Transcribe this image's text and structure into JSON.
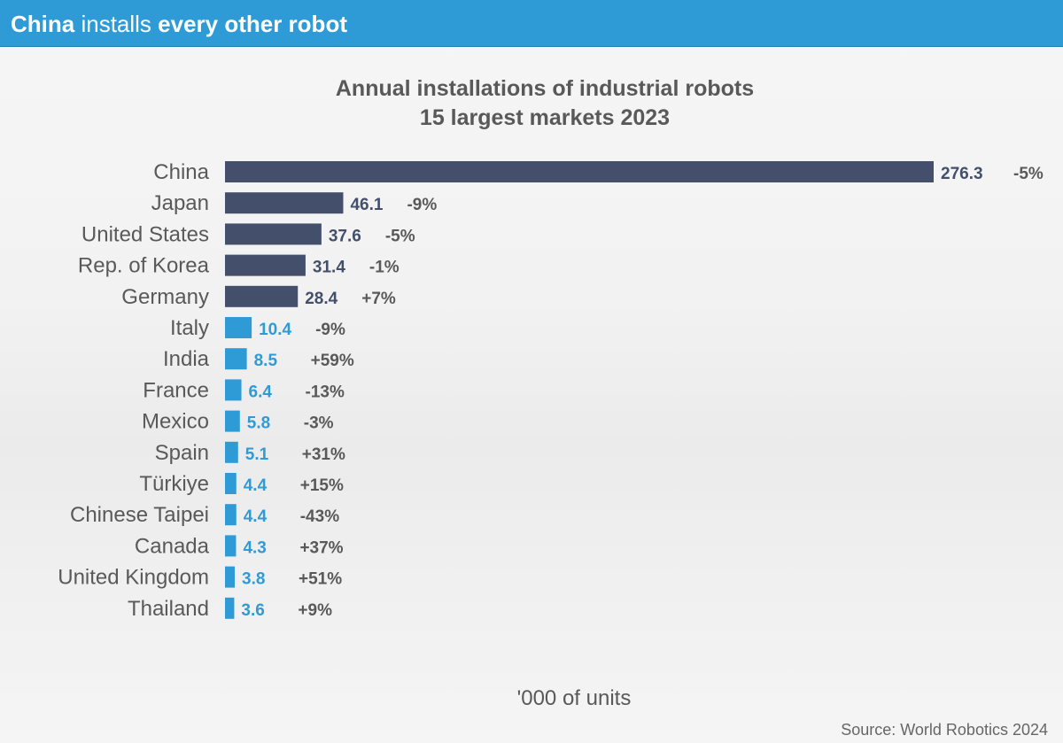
{
  "header": {
    "title_part1": "China",
    "title_part2": " installs ",
    "title_part3": "every other robot"
  },
  "chart_data": {
    "type": "bar",
    "orientation": "horizontal",
    "title": "Annual installations of industrial robots",
    "subtitle": "15 largest markets 2023",
    "xlabel": "'000 of units",
    "ylabel": "",
    "categories": [
      "China",
      "Japan",
      "United States",
      "Rep. of Korea",
      "Germany",
      "Italy",
      "India",
      "France",
      "Mexico",
      "Spain",
      "Türkiye",
      "Chinese Taipei",
      "Canada",
      "United Kingdom",
      "Thailand"
    ],
    "values": [
      276.3,
      46.1,
      37.6,
      31.4,
      28.4,
      10.4,
      8.5,
      6.4,
      5.8,
      5.1,
      4.4,
      4.4,
      4.3,
      3.8,
      3.6
    ],
    "value_labels": [
      "276.3",
      "46.1",
      "37.6",
      "31.4",
      "28.4",
      "10.4",
      "8.5",
      "6.4",
      "5.8",
      "5.1",
      "4.4",
      "4.4",
      "4.3",
      "3.8",
      "3.6"
    ],
    "change_labels": [
      "-5%",
      "-9%",
      "-5%",
      "-1%",
      "+7%",
      "-9%",
      "+59%",
      "-13%",
      "-3%",
      "+31%",
      "+15%",
      "-43%",
      "+37%",
      "+51%",
      "+9%"
    ],
    "highlight_count": 5,
    "colors": {
      "top5": "#434f6b",
      "others": "#2e9bd6",
      "change_text": "#595959",
      "category_text": "#595959"
    },
    "xlim": [
      0,
      276.3
    ],
    "grid": false,
    "legend": "none"
  },
  "source": "Source: World Robotics 2024"
}
